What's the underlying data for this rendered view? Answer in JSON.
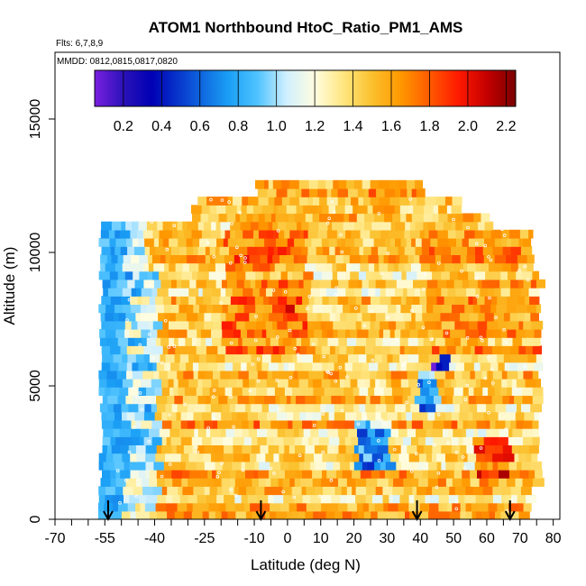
{
  "chart_data": {
    "type": "heatmap",
    "title": "ATOM1 Northbound HtoC_Ratio_PM1_AMS",
    "flights_label": "Flts: 6,7,8,9",
    "dates_label": "MMDD: 0812,0815,0817,0820",
    "xlabel": "Latitude (deg N)",
    "ylabel": "Altitude (m)",
    "xlim": [
      -70,
      82
    ],
    "ylim": [
      0,
      17500
    ],
    "x_ticks": [
      -70,
      -55,
      -40,
      -25,
      -10,
      0,
      10,
      20,
      30,
      40,
      50,
      60,
      70,
      80
    ],
    "x_minor_ticks": [
      -65,
      -60,
      -50,
      -45,
      -35,
      -30,
      -20,
      -15,
      -5,
      5,
      15,
      25,
      35,
      45,
      55,
      65,
      75
    ],
    "y_ticks": [
      0,
      5000,
      10000,
      15000
    ],
    "colorbar": {
      "range": [
        0.05,
        2.25
      ],
      "ticks": [
        0.2,
        0.4,
        0.6,
        0.8,
        1.0,
        1.2,
        1.4,
        1.6,
        1.8,
        2.0,
        2.2
      ],
      "tick_labels": [
        "0.2",
        "0.4",
        "0.6",
        "0.8",
        "1.0",
        "1.2",
        "1.4",
        "1.6",
        "1.8",
        "2.0",
        "2.2"
      ],
      "stops": [
        {
          "value": 0.05,
          "color": "#7a1fe0"
        },
        {
          "value": 0.2,
          "color": "#2b12b8"
        },
        {
          "value": 0.35,
          "color": "#0000b4"
        },
        {
          "value": 0.55,
          "color": "#0b4fd6"
        },
        {
          "value": 0.75,
          "color": "#1a9ff5"
        },
        {
          "value": 0.9,
          "color": "#4fc3ff"
        },
        {
          "value": 1.05,
          "color": "#cfefff"
        },
        {
          "value": 1.2,
          "color": "#fffde0"
        },
        {
          "value": 1.35,
          "color": "#ffe680"
        },
        {
          "value": 1.5,
          "color": "#fbc02d"
        },
        {
          "value": 1.65,
          "color": "#ff9800"
        },
        {
          "value": 1.8,
          "color": "#ff5a00"
        },
        {
          "value": 1.95,
          "color": "#ff1a00"
        },
        {
          "value": 2.1,
          "color": "#c40000"
        },
        {
          "value": 2.25,
          "color": "#7a0000"
        }
      ]
    },
    "profile_arrows_latitude": [
      -54,
      -8,
      39,
      67
    ],
    "field_extent": {
      "lat_range": [
        -57,
        76
      ],
      "alt_range": [
        0,
        12900
      ],
      "approx_values_by_region": [
        {
          "lat": [
            -57,
            -50
          ],
          "alt": [
            0,
            9000
          ],
          "value": 0.75
        },
        {
          "lat": [
            -50,
            -40
          ],
          "alt": [
            0,
            9000
          ],
          "value": 1.05
        },
        {
          "lat": [
            -40,
            -10
          ],
          "alt": [
            1500,
            5000
          ],
          "value": 1.5
        },
        {
          "lat": [
            -20,
            5
          ],
          "alt": [
            6000,
            11500
          ],
          "value": 1.7
        },
        {
          "lat": [
            -4,
            0
          ],
          "alt": [
            7700,
            8000
          ],
          "value": 2.1
        },
        {
          "lat": [
            20,
            30
          ],
          "alt": [
            1800,
            3500
          ],
          "value": 0.8
        },
        {
          "lat": [
            38,
            44
          ],
          "alt": [
            4000,
            5500
          ],
          "value": 0.8
        },
        {
          "lat": [
            43,
            47
          ],
          "alt": [
            5500,
            8500
          ],
          "value": 0.4
        },
        {
          "lat": [
            55,
            65
          ],
          "alt": [
            1500,
            3000
          ],
          "value": 1.9
        },
        {
          "lat": [
            40,
            76
          ],
          "alt": [
            6000,
            11000
          ],
          "value": 1.6
        },
        {
          "lat": [
            -30,
            40
          ],
          "alt": [
            11000,
            12900
          ],
          "value": 1.5
        }
      ]
    }
  }
}
